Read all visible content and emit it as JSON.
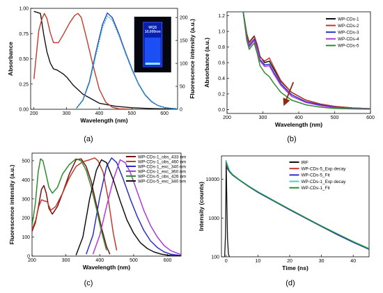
{
  "figure": {
    "captions": [
      "(a)",
      "(b)",
      "(c)",
      "(d)"
    ]
  },
  "chart_data": [
    {
      "panel": "a",
      "type": "line",
      "xlabel": "Wavelength (nm)",
      "ylabel": "Absorbance",
      "y2label": "Fluorescence intensity (a.u.)",
      "xlim": [
        190,
        640
      ],
      "ylim": [
        0,
        1.0
      ],
      "y2lim": [
        0,
        220
      ],
      "xticks": [
        200,
        300,
        400,
        500,
        600
      ],
      "yticks": [
        0,
        0.25,
        0.5,
        0.75,
        1.0
      ],
      "ytick_labels": [
        "0.00",
        "0.25",
        "0.50",
        "0.75",
        "1.00"
      ],
      "y2ticks": [
        0,
        50,
        100,
        150,
        200
      ],
      "inset_text": [
        "WQS",
        "10,000nm"
      ],
      "series": [
        {
          "color": "#111111",
          "axis": "left",
          "x": [
            200,
            220,
            230,
            240,
            250,
            260,
            270,
            280,
            290,
            300,
            320,
            350,
            400,
            450,
            500,
            550,
            600,
            640
          ],
          "y": [
            0.97,
            0.95,
            0.74,
            0.57,
            0.46,
            0.4,
            0.39,
            0.37,
            0.35,
            0.32,
            0.24,
            0.15,
            0.06,
            0.03,
            0.015,
            0.008,
            0.004,
            0.002
          ]
        },
        {
          "color": "#c0392b",
          "axis": "left",
          "x": [
            200,
            215,
            225,
            232,
            240,
            250,
            260,
            275,
            290,
            310,
            325,
            335,
            345,
            360,
            380,
            400,
            420,
            440,
            460,
            500
          ],
          "y": [
            0.3,
            0.78,
            0.9,
            0.95,
            0.9,
            0.76,
            0.66,
            0.66,
            0.74,
            0.86,
            0.93,
            0.95,
            0.91,
            0.72,
            0.45,
            0.2,
            0.07,
            0.02,
            0.005,
            0
          ]
        },
        {
          "color": "#1f3fd1",
          "axis": "right",
          "x": [
            330,
            350,
            370,
            390,
            410,
            425,
            440,
            460,
            480,
            500,
            520,
            540,
            560,
            580,
            600,
            620,
            640
          ],
          "y": [
            2,
            20,
            60,
            125,
            185,
            210,
            200,
            165,
            125,
            88,
            56,
            32,
            17,
            8,
            4,
            2,
            1
          ]
        },
        {
          "color": "#2fb5a3",
          "axis": "right",
          "dashed": true,
          "x": [
            330,
            350,
            370,
            390,
            410,
            425,
            440,
            460,
            480,
            500,
            520,
            540,
            560,
            580,
            600,
            620,
            640
          ],
          "y": [
            2,
            19,
            57,
            118,
            178,
            203,
            195,
            161,
            122,
            86,
            55,
            31,
            16,
            8,
            4,
            2,
            1
          ]
        }
      ]
    },
    {
      "panel": "b",
      "type": "line",
      "xlabel": "Wavelength (nm)",
      "ylabel": "Absorbance (a.u.)",
      "xlim": [
        200,
        600
      ],
      "ylim": [
        -0.05,
        1.25
      ],
      "xticks": [
        200,
        300,
        400,
        500,
        600
      ],
      "yticks": [
        0,
        0.2,
        0.4,
        0.6,
        0.8,
        1.0,
        1.2
      ],
      "ytick_labels": [
        "0.0",
        "0.2",
        "0.4",
        "0.6",
        "0.8",
        "1.0",
        "1.2"
      ],
      "legend": "top-right",
      "series": [
        {
          "name": "WP-CDs-1",
          "color": "#111111",
          "x": [
            245,
            255,
            262,
            270,
            276,
            284,
            292,
            305,
            318,
            330,
            350,
            380,
            420,
            460,
            500,
            550,
            600
          ],
          "y": [
            1.25,
            0.97,
            0.86,
            0.91,
            0.94,
            0.83,
            0.68,
            0.6,
            0.62,
            0.52,
            0.36,
            0.22,
            0.12,
            0.07,
            0.04,
            0.02,
            0.01
          ]
        },
        {
          "name": "WP-CDs-2",
          "color": "#c0392b",
          "x": [
            245,
            255,
            262,
            270,
            276,
            284,
            292,
            305,
            318,
            330,
            350,
            380,
            420,
            460,
            500,
            550,
            600
          ],
          "y": [
            1.25,
            0.96,
            0.85,
            0.9,
            0.93,
            0.82,
            0.67,
            0.62,
            0.66,
            0.55,
            0.37,
            0.22,
            0.12,
            0.07,
            0.04,
            0.02,
            0.01
          ]
        },
        {
          "name": "WP-CDs-3",
          "color": "#2b2fc9",
          "x": [
            245,
            255,
            262,
            270,
            276,
            284,
            292,
            305,
            318,
            330,
            350,
            380,
            420,
            460,
            500,
            550,
            600
          ],
          "y": [
            1.25,
            0.93,
            0.82,
            0.87,
            0.9,
            0.79,
            0.64,
            0.57,
            0.58,
            0.48,
            0.33,
            0.19,
            0.1,
            0.06,
            0.03,
            0.015,
            0.008
          ]
        },
        {
          "name": "WP-CDs-4",
          "color": "#b03ad6",
          "x": [
            245,
            255,
            262,
            270,
            276,
            284,
            292,
            305,
            318,
            330,
            350,
            380,
            420,
            460,
            500,
            550,
            600
          ],
          "y": [
            1.25,
            0.92,
            0.8,
            0.85,
            0.88,
            0.77,
            0.62,
            0.55,
            0.56,
            0.46,
            0.31,
            0.17,
            0.09,
            0.05,
            0.025,
            0.012,
            0.006
          ]
        },
        {
          "name": "WP-CDs-5",
          "color": "#2e8b2e",
          "x": [
            245,
            255,
            262,
            270,
            276,
            284,
            292,
            305,
            318,
            330,
            350,
            380,
            420,
            460,
            500,
            550,
            600
          ],
          "y": [
            1.25,
            0.89,
            0.77,
            0.82,
            0.85,
            0.72,
            0.56,
            0.47,
            0.42,
            0.34,
            0.22,
            0.12,
            0.06,
            0.03,
            0.015,
            0.008,
            0.004
          ]
        }
      ],
      "arrow": {
        "x1": 385,
        "y1": 0.35,
        "x2": 362,
        "y2": 0.09
      }
    },
    {
      "panel": "c",
      "type": "line",
      "xlabel": "Wavelength (nm)",
      "ylabel": "Fluorescence intensity (a.u.)",
      "xlim": [
        200,
        640
      ],
      "ylim": [
        0,
        540
      ],
      "xticks": [
        200,
        300,
        400,
        500,
        600
      ],
      "yticks": [
        0,
        100,
        200,
        300,
        400,
        500
      ],
      "legend": "top-right",
      "series": [
        {
          "name": "WP-CDs-1_obs_433 nm",
          "color": "#7a1111",
          "x": [
            200,
            210,
            220,
            228,
            235,
            242,
            250,
            260,
            275,
            290,
            310,
            330,
            345,
            360,
            375,
            390,
            405,
            420,
            430
          ],
          "y": [
            130,
            175,
            270,
            350,
            370,
            330,
            250,
            220,
            260,
            330,
            430,
            505,
            510,
            470,
            390,
            270,
            150,
            50,
            10
          ]
        },
        {
          "name": "WP-CDs-1_obs_460 nm",
          "color": "#c0392b",
          "x": [
            200,
            210,
            220,
            228,
            235,
            245,
            255,
            270,
            290,
            310,
            330,
            350,
            370,
            385,
            395,
            410,
            425,
            440,
            450
          ],
          "y": [
            140,
            185,
            260,
            295,
            290,
            285,
            240,
            260,
            330,
            410,
            470,
            495,
            505,
            515,
            500,
            440,
            300,
            120,
            30
          ]
        },
        {
          "name": "WP-CDs-1_exc_340 nm",
          "color": "#2b2fc9",
          "x": [
            360,
            380,
            400,
            420,
            435,
            450,
            470,
            490,
            510,
            530,
            550,
            570,
            590,
            610,
            640
          ],
          "y": [
            10,
            110,
            310,
            470,
            515,
            490,
            400,
            300,
            210,
            135,
            80,
            45,
            22,
            10,
            3
          ]
        },
        {
          "name": "WP-CDs-1_exc_360 nm",
          "color": "#b03ad6",
          "x": [
            380,
            400,
            420,
            440,
            460,
            475,
            490,
            510,
            530,
            550,
            570,
            590,
            610,
            640
          ],
          "y": [
            10,
            110,
            260,
            400,
            505,
            490,
            440,
            340,
            240,
            160,
            100,
            55,
            28,
            8
          ]
        },
        {
          "name": "WP-CDs-5_obs_426 nm",
          "color": "#2e8b2e",
          "x": [
            200,
            210,
            218,
            225,
            232,
            240,
            250,
            260,
            275,
            290,
            310,
            330,
            345,
            360,
            375,
            390,
            405,
            420
          ],
          "y": [
            160,
            280,
            440,
            510,
            500,
            440,
            360,
            330,
            360,
            430,
            480,
            510,
            500,
            450,
            360,
            250,
            130,
            30
          ]
        },
        {
          "name": "WP-CDs-5_exc_340 nm",
          "color": "#111111",
          "x": [
            330,
            350,
            370,
            390,
            405,
            420,
            440,
            460,
            480,
            500,
            520,
            540,
            560,
            580,
            600,
            620,
            640
          ],
          "y": [
            5,
            100,
            300,
            450,
            505,
            490,
            400,
            290,
            190,
            120,
            70,
            40,
            22,
            11,
            5,
            2,
            1
          ]
        }
      ]
    },
    {
      "panel": "d",
      "type": "line",
      "xlabel": "Time (ns)",
      "ylabel": "Intensity (counts)",
      "xlim": [
        -1.5,
        45
      ],
      "ylim": [
        100,
        40000
      ],
      "yscale": "log",
      "xticks": [
        0,
        10,
        20,
        30,
        40
      ],
      "yticks": [
        100,
        1000,
        10000
      ],
      "legend": "top-right",
      "series": [
        {
          "name": "IRF",
          "color": "#111111",
          "x": [
            -0.5,
            -0.2,
            0,
            0.2,
            0.4,
            0.7,
            1.0
          ],
          "y": [
            100,
            400,
            30000,
            2500,
            300,
            120,
            100
          ]
        },
        {
          "name": "WP-CDs-5_Exp decay",
          "color": "#c0392b",
          "x": [
            0,
            1,
            2,
            4,
            7,
            10,
            15,
            20,
            25,
            30,
            35,
            40,
            45
          ],
          "y": [
            24000,
            16000,
            13000,
            9800,
            6600,
            4600,
            2750,
            1650,
            1000,
            610,
            380,
            240,
            160
          ]
        },
        {
          "name": "WP-CDs-5_Fit",
          "color": "#2b2fc9",
          "x": [
            0,
            1,
            2,
            4,
            7,
            10,
            15,
            20,
            25,
            30,
            35,
            40,
            45
          ],
          "y": [
            21000,
            15500,
            12700,
            9600,
            6500,
            4550,
            2720,
            1630,
            990,
            600,
            370,
            235,
            155
          ]
        },
        {
          "name": "WP-CDs-1_Exp decay",
          "color": "#3ad6c8",
          "x": [
            0,
            1,
            2,
            4,
            7,
            10,
            15,
            20,
            25,
            30,
            35,
            40,
            45
          ],
          "y": [
            30000,
            17000,
            13500,
            10000,
            6800,
            4800,
            2850,
            1700,
            1030,
            630,
            395,
            250,
            165
          ]
        },
        {
          "name": "WP-CDs-1_Fit",
          "color": "#2e8b2e",
          "x": [
            0,
            1,
            2,
            4,
            7,
            10,
            15,
            20,
            25,
            30,
            35,
            40,
            45
          ],
          "y": [
            26000,
            16200,
            13000,
            9800,
            6650,
            4700,
            2800,
            1680,
            1020,
            620,
            390,
            245,
            160
          ]
        }
      ]
    }
  ]
}
